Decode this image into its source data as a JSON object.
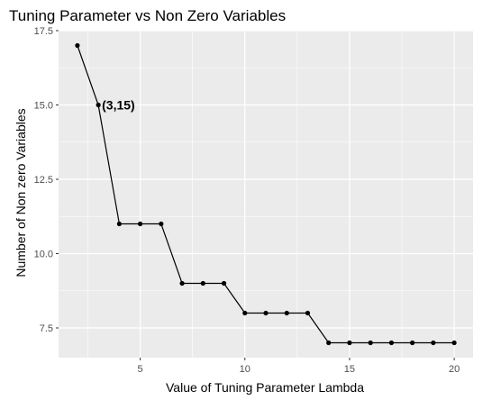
{
  "chart_data": {
    "type": "line",
    "title": "Tuning Parameter vs Non Zero Variables",
    "xlabel": "Value of Tuning Parameter Lambda",
    "ylabel": "Number of Non zero Variables",
    "xlim": [
      1.1,
      20.9
    ],
    "ylim": [
      6.5,
      17.5
    ],
    "x_ticks": [
      5,
      10,
      15,
      20
    ],
    "x_tick_labels": [
      "5",
      "10",
      "15",
      "20"
    ],
    "y_ticks": [
      7.5,
      10.0,
      12.5,
      15.0,
      17.5
    ],
    "y_tick_labels": [
      "7.5",
      "10.0",
      "12.5",
      "15.0",
      "17.5"
    ],
    "grid": true,
    "legend": "none",
    "colors": {
      "panel": "#ebebeb",
      "grid": "#ffffff",
      "line": "#000000",
      "point": "#000000"
    },
    "series": [
      {
        "x": [
          2,
          3,
          4,
          5,
          6,
          7,
          8,
          9,
          10,
          11,
          12,
          13,
          14,
          15,
          16,
          17,
          18,
          19,
          20
        ],
        "y": [
          17,
          15,
          11,
          11,
          11,
          9,
          9,
          9,
          8,
          8,
          8,
          8,
          7,
          7,
          7,
          7,
          7,
          7,
          7
        ]
      }
    ],
    "annotations": [
      {
        "x": 3,
        "y": 15,
        "text": "(3,15)"
      }
    ]
  }
}
